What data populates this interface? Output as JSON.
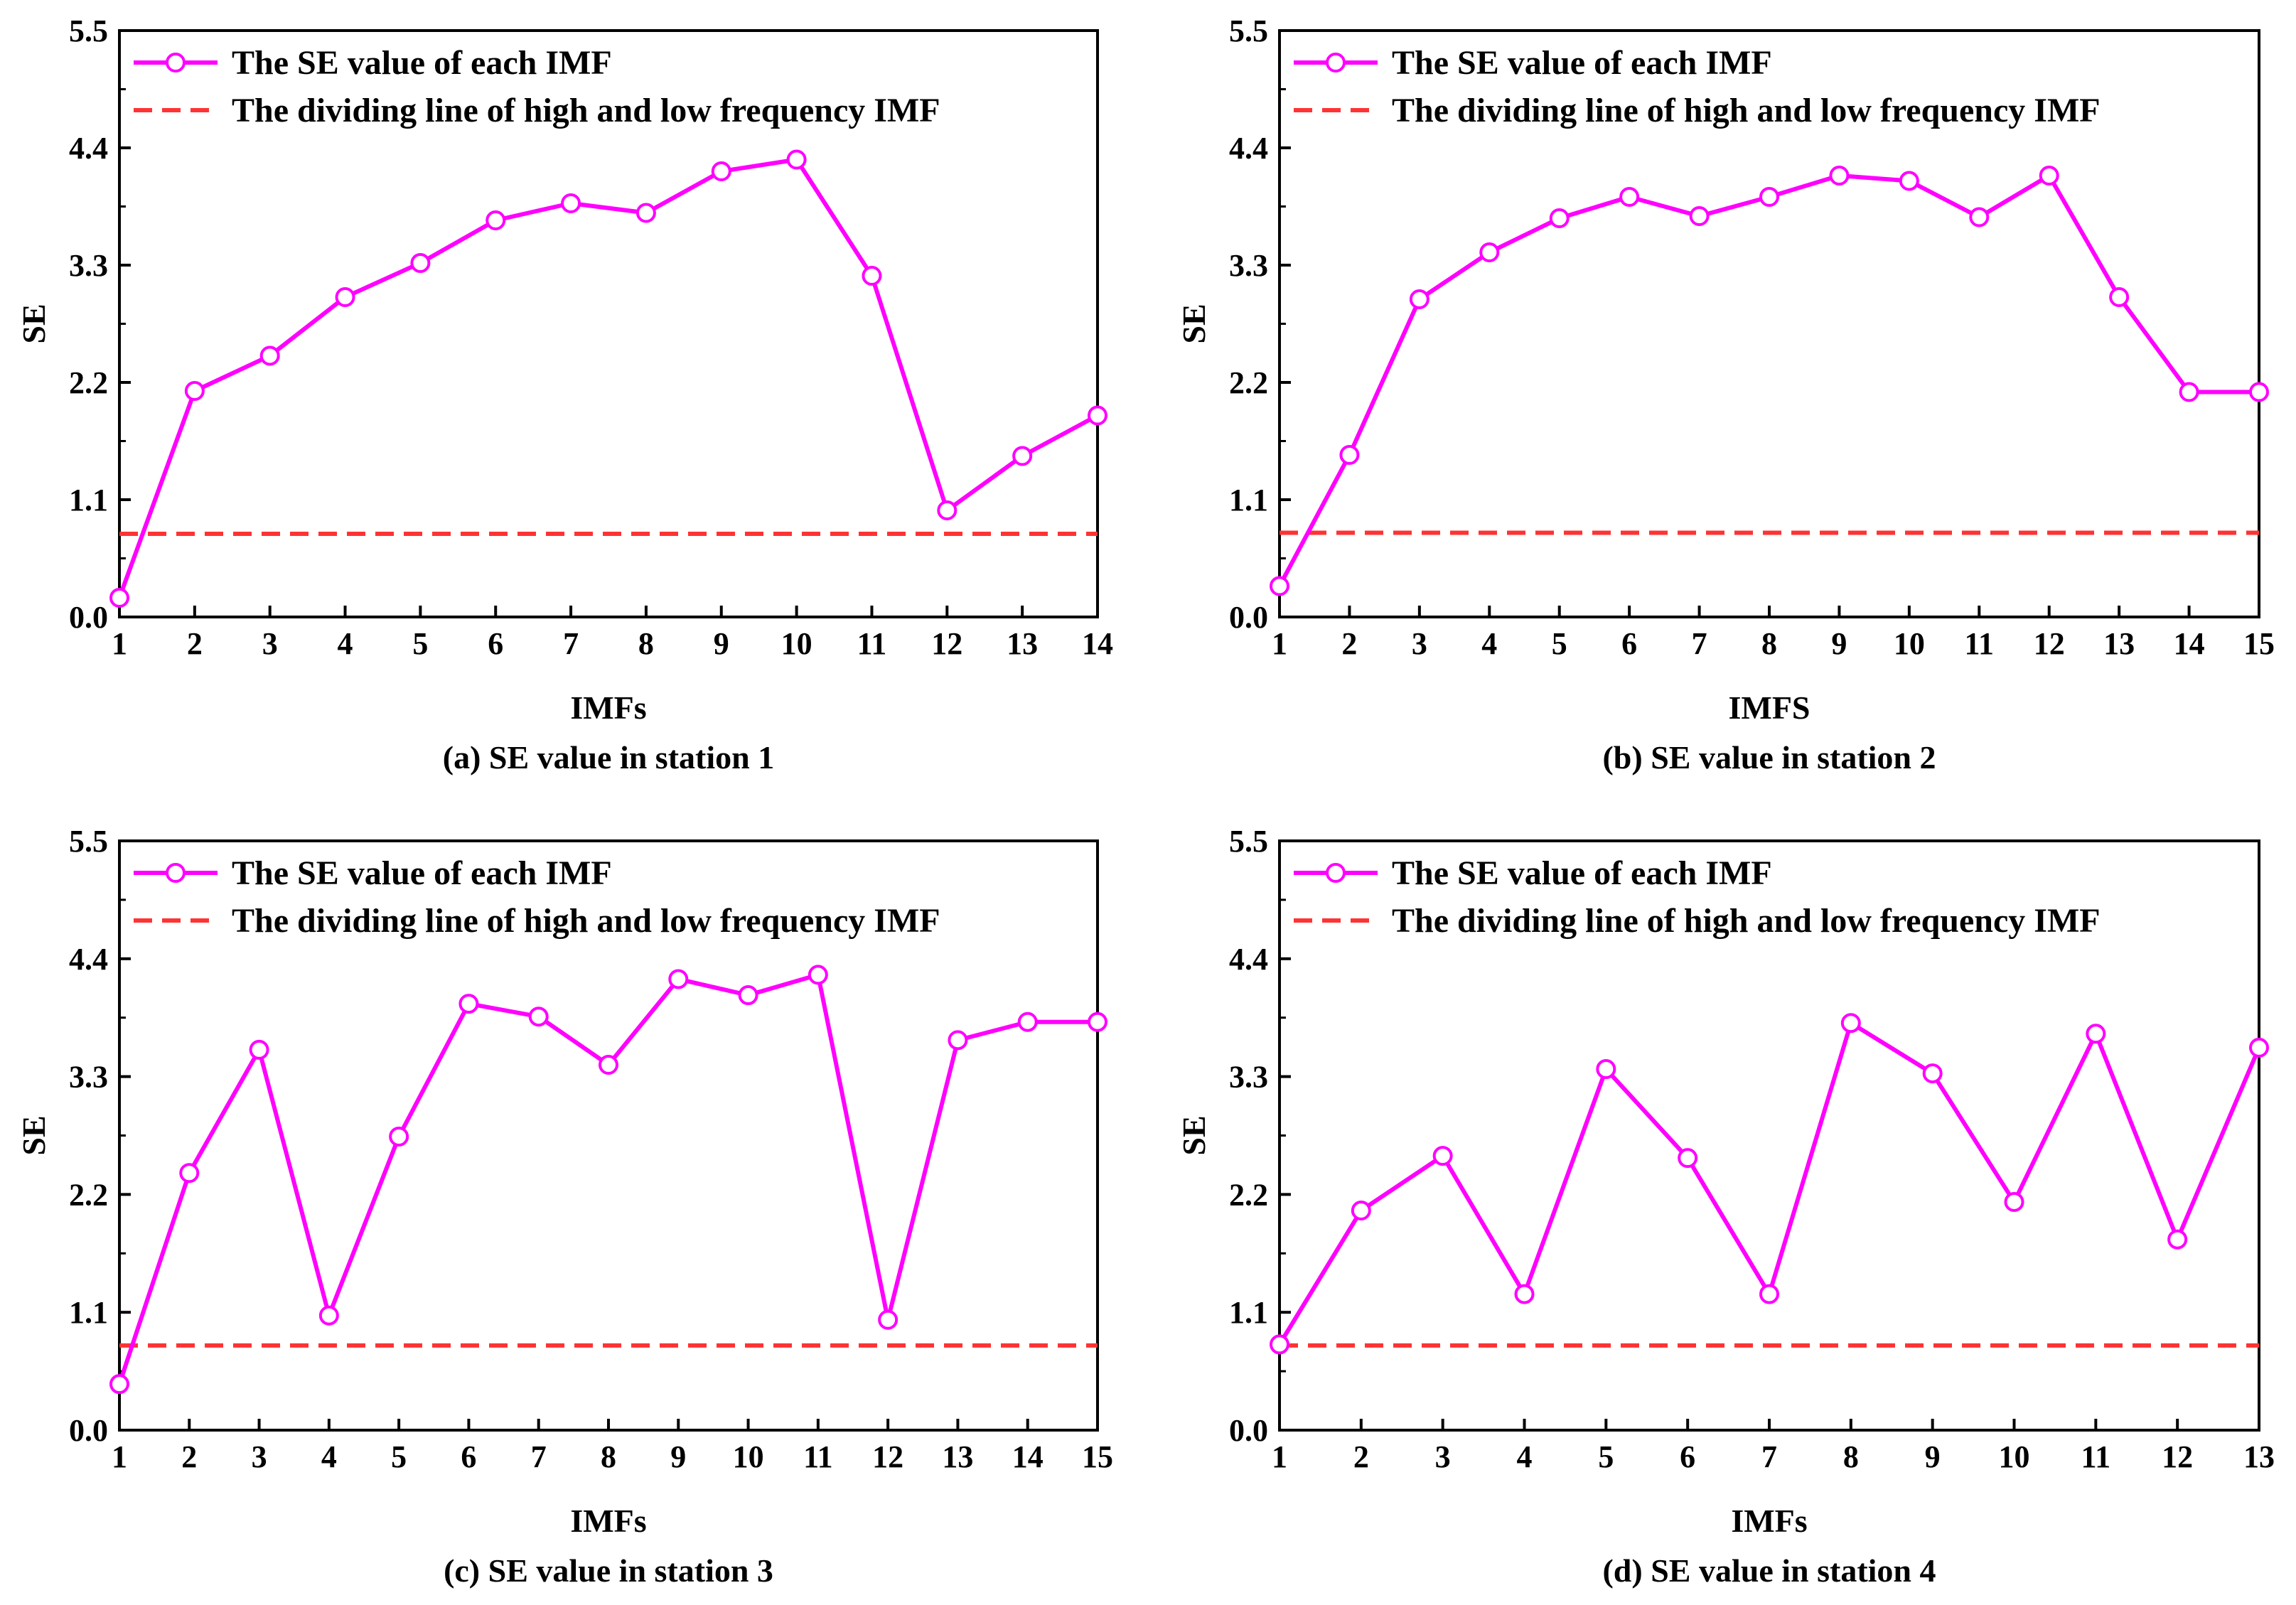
{
  "chart_data": [
    {
      "type": "line",
      "caption": "(a) SE value in station 1",
      "xlabel": "IMFs",
      "ylabel": "SE",
      "x": [
        1,
        2,
        3,
        4,
        5,
        6,
        7,
        8,
        9,
        10,
        11,
        12,
        13,
        14
      ],
      "xlim": [
        1,
        14
      ],
      "ylim": [
        0.0,
        5.5
      ],
      "yticks": [
        "0.0",
        "1.1",
        "2.2",
        "3.3",
        "4.4",
        "5.5"
      ],
      "xticks": [
        "1",
        "2",
        "3",
        "4",
        "5",
        "6",
        "7",
        "8",
        "9",
        "10",
        "11",
        "12",
        "13",
        "14"
      ],
      "series": [
        {
          "name": "The SE value of each IMF",
          "values": [
            0.18,
            2.12,
            2.45,
            3.0,
            3.32,
            3.72,
            3.88,
            3.79,
            4.18,
            4.29,
            3.2,
            1.0,
            1.51,
            1.89
          ]
        }
      ],
      "threshold": {
        "name": "The dividing line of high and low frequency IMF",
        "value": 0.78
      },
      "legend": "top-left"
    },
    {
      "type": "line",
      "caption": "(b) SE value in station 2",
      "xlabel": "IMFS",
      "ylabel": "SE",
      "x": [
        1,
        2,
        3,
        4,
        5,
        6,
        7,
        8,
        9,
        10,
        11,
        12,
        13,
        14,
        15
      ],
      "xlim": [
        1,
        15
      ],
      "ylim": [
        0.0,
        5.5
      ],
      "yticks": [
        "0.0",
        "1.1",
        "2.2",
        "3.3",
        "4.4",
        "5.5"
      ],
      "xticks": [
        "1",
        "2",
        "3",
        "4",
        "5",
        "6",
        "7",
        "8",
        "9",
        "10",
        "11",
        "12",
        "13",
        "14",
        "15"
      ],
      "series": [
        {
          "name": "The SE value of each IMF",
          "values": [
            0.29,
            1.52,
            2.98,
            3.42,
            3.74,
            3.94,
            3.76,
            3.94,
            4.14,
            4.09,
            3.75,
            4.14,
            3.0,
            2.11,
            2.11
          ]
        }
      ],
      "threshold": {
        "name": "The dividing line of high and low frequency IMF",
        "value": 0.79
      },
      "legend": "top-left"
    },
    {
      "type": "line",
      "caption": "(c) SE value in station 3",
      "xlabel": "IMFs",
      "ylabel": "SE",
      "x": [
        1,
        2,
        3,
        4,
        5,
        6,
        7,
        8,
        9,
        10,
        11,
        12,
        13,
        14,
        15
      ],
      "xlim": [
        1,
        15
      ],
      "ylim": [
        0.0,
        5.5
      ],
      "yticks": [
        "0.0",
        "1.1",
        "2.2",
        "3.3",
        "4.4",
        "5.5"
      ],
      "xticks": [
        "1",
        "2",
        "3",
        "4",
        "5",
        "6",
        "7",
        "8",
        "9",
        "10",
        "11",
        "12",
        "13",
        "14",
        "15"
      ],
      "series": [
        {
          "name": "The SE value of each IMF",
          "values": [
            0.43,
            2.4,
            3.55,
            1.07,
            2.74,
            3.98,
            3.86,
            3.41,
            4.21,
            4.06,
            4.25,
            1.03,
            3.64,
            3.81,
            3.81
          ]
        }
      ],
      "threshold": {
        "name": "The dividing line of high and low frequency IMF",
        "value": 0.79
      },
      "legend": "top-left"
    },
    {
      "type": "line",
      "caption": "(d) SE value in station 4",
      "xlabel": "IMFs",
      "ylabel": "SE",
      "x": [
        1,
        2,
        3,
        4,
        5,
        6,
        7,
        8,
        9,
        10,
        11,
        12,
        13
      ],
      "xlim": [
        1,
        13
      ],
      "ylim": [
        0.0,
        5.5
      ],
      "yticks": [
        "0.0",
        "1.1",
        "2.2",
        "3.3",
        "4.4",
        "5.5"
      ],
      "xticks": [
        "1",
        "2",
        "3",
        "4",
        "5",
        "6",
        "7",
        "8",
        "9",
        "10",
        "11",
        "12",
        "13"
      ],
      "series": [
        {
          "name": "The SE value of each IMF",
          "values": [
            0.8,
            2.05,
            2.56,
            1.27,
            3.37,
            2.54,
            1.27,
            3.8,
            3.33,
            2.13,
            3.7,
            1.78,
            3.57
          ]
        }
      ],
      "threshold": {
        "name": "The dividing line of high and low frequency IMF",
        "value": 0.79
      },
      "legend": "top-left"
    }
  ],
  "colors": {
    "series": "#ff00ff",
    "threshold": "#ff3333",
    "axis": "#000000",
    "background": "#ffffff"
  }
}
